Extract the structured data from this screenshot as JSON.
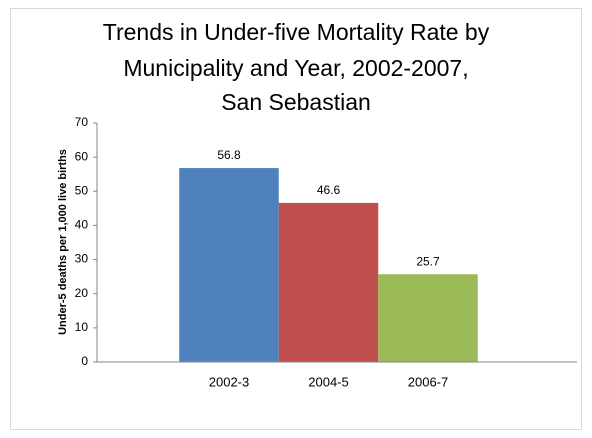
{
  "chart_data": {
    "type": "bar",
    "title": [
      "Trends in Under-five Mortality Rate by",
      "Municipality and Year, 2002-2007,",
      "San Sebastian"
    ],
    "y_label": "Under-5 deaths per 1,000 live births",
    "categories": [
      "2002-3",
      "2004-5",
      "2006-7"
    ],
    "values": [
      56.8,
      46.6,
      25.7
    ],
    "colors": [
      "#4f81bd",
      "#c0504d",
      "#9bbb59"
    ],
    "ylim": [
      0,
      70
    ],
    "yticks": [
      0,
      10,
      20,
      30,
      40,
      50,
      60,
      70
    ],
    "data_labels": true
  }
}
